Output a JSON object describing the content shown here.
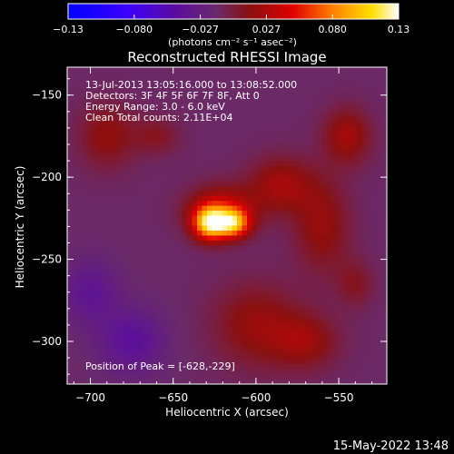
{
  "colorbar": {
    "ticks": [
      "-0.13",
      "-0.080",
      "-0.027",
      "0.027",
      "0.080",
      "0.13"
    ],
    "unit_label": "(photons cm⁻² s⁻¹ asec⁻²)"
  },
  "footer": {
    "timestamp": "15-May-2022 13:48"
  },
  "chart_data": {
    "type": "heatmap",
    "title": "Reconstructed RHESSI Image",
    "xlabel": "Heliocentric X (arcsec)",
    "ylabel": "Heliocentric Y (arcsec)",
    "xlim": [
      -714,
      -521
    ],
    "ylim": [
      -326,
      -133
    ],
    "x_ticks": [
      -700,
      -650,
      -600,
      -550
    ],
    "x_tick_labels": [
      "−700",
      "−650",
      "−600",
      "−550"
    ],
    "y_ticks": [
      -150,
      -200,
      -250,
      -300
    ],
    "y_tick_labels": [
      "−150",
      "−200",
      "−250",
      "−300"
    ],
    "value_range": [
      -0.13,
      0.13
    ],
    "colormap": "rhessi-blue-purple-red-yellow-white",
    "annotations": [
      "13-Jul-2013 13:05:16.000 to 13:08:52.000",
      "Detectors: 3F 4F 5F 6F 7F 8F, Att 0",
      "Energy Range: 3.0 - 6.0 keV",
      "Clean    Total counts: 2.11E+04"
    ],
    "peak_label": "Position of Peak = [-628,-229]",
    "peak": {
      "x": -628,
      "y": -229,
      "value": 0.13
    },
    "sources": [
      {
        "x": -628,
        "y": -228,
        "sx": 7,
        "sy": 7,
        "amp": 0.11
      },
      {
        "x": -614,
        "y": -228,
        "sx": 7,
        "sy": 6,
        "amp": 0.095
      },
      {
        "x": -621,
        "y": -220,
        "sx": 14,
        "sy": 10,
        "amp": 0.05
      },
      {
        "x": -585,
        "y": -205,
        "sx": 14,
        "sy": 12,
        "amp": 0.035
      },
      {
        "x": -560,
        "y": -230,
        "sx": 12,
        "sy": 20,
        "amp": 0.03
      },
      {
        "x": -545,
        "y": -175,
        "sx": 10,
        "sy": 12,
        "amp": 0.035
      },
      {
        "x": -690,
        "y": -175,
        "sx": 12,
        "sy": 14,
        "amp": 0.028
      },
      {
        "x": -600,
        "y": -290,
        "sx": 18,
        "sy": 18,
        "amp": 0.03
      },
      {
        "x": -570,
        "y": -300,
        "sx": 14,
        "sy": 12,
        "amp": 0.03
      },
      {
        "x": -660,
        "y": -175,
        "sx": 10,
        "sy": 8,
        "amp": 0.02
      },
      {
        "x": -700,
        "y": -270,
        "sx": 12,
        "sy": 14,
        "amp": -0.025
      },
      {
        "x": -675,
        "y": -300,
        "sx": 14,
        "sy": 14,
        "amp": -0.03
      },
      {
        "x": -540,
        "y": -265,
        "sx": 8,
        "sy": 10,
        "amp": 0.02
      }
    ]
  }
}
